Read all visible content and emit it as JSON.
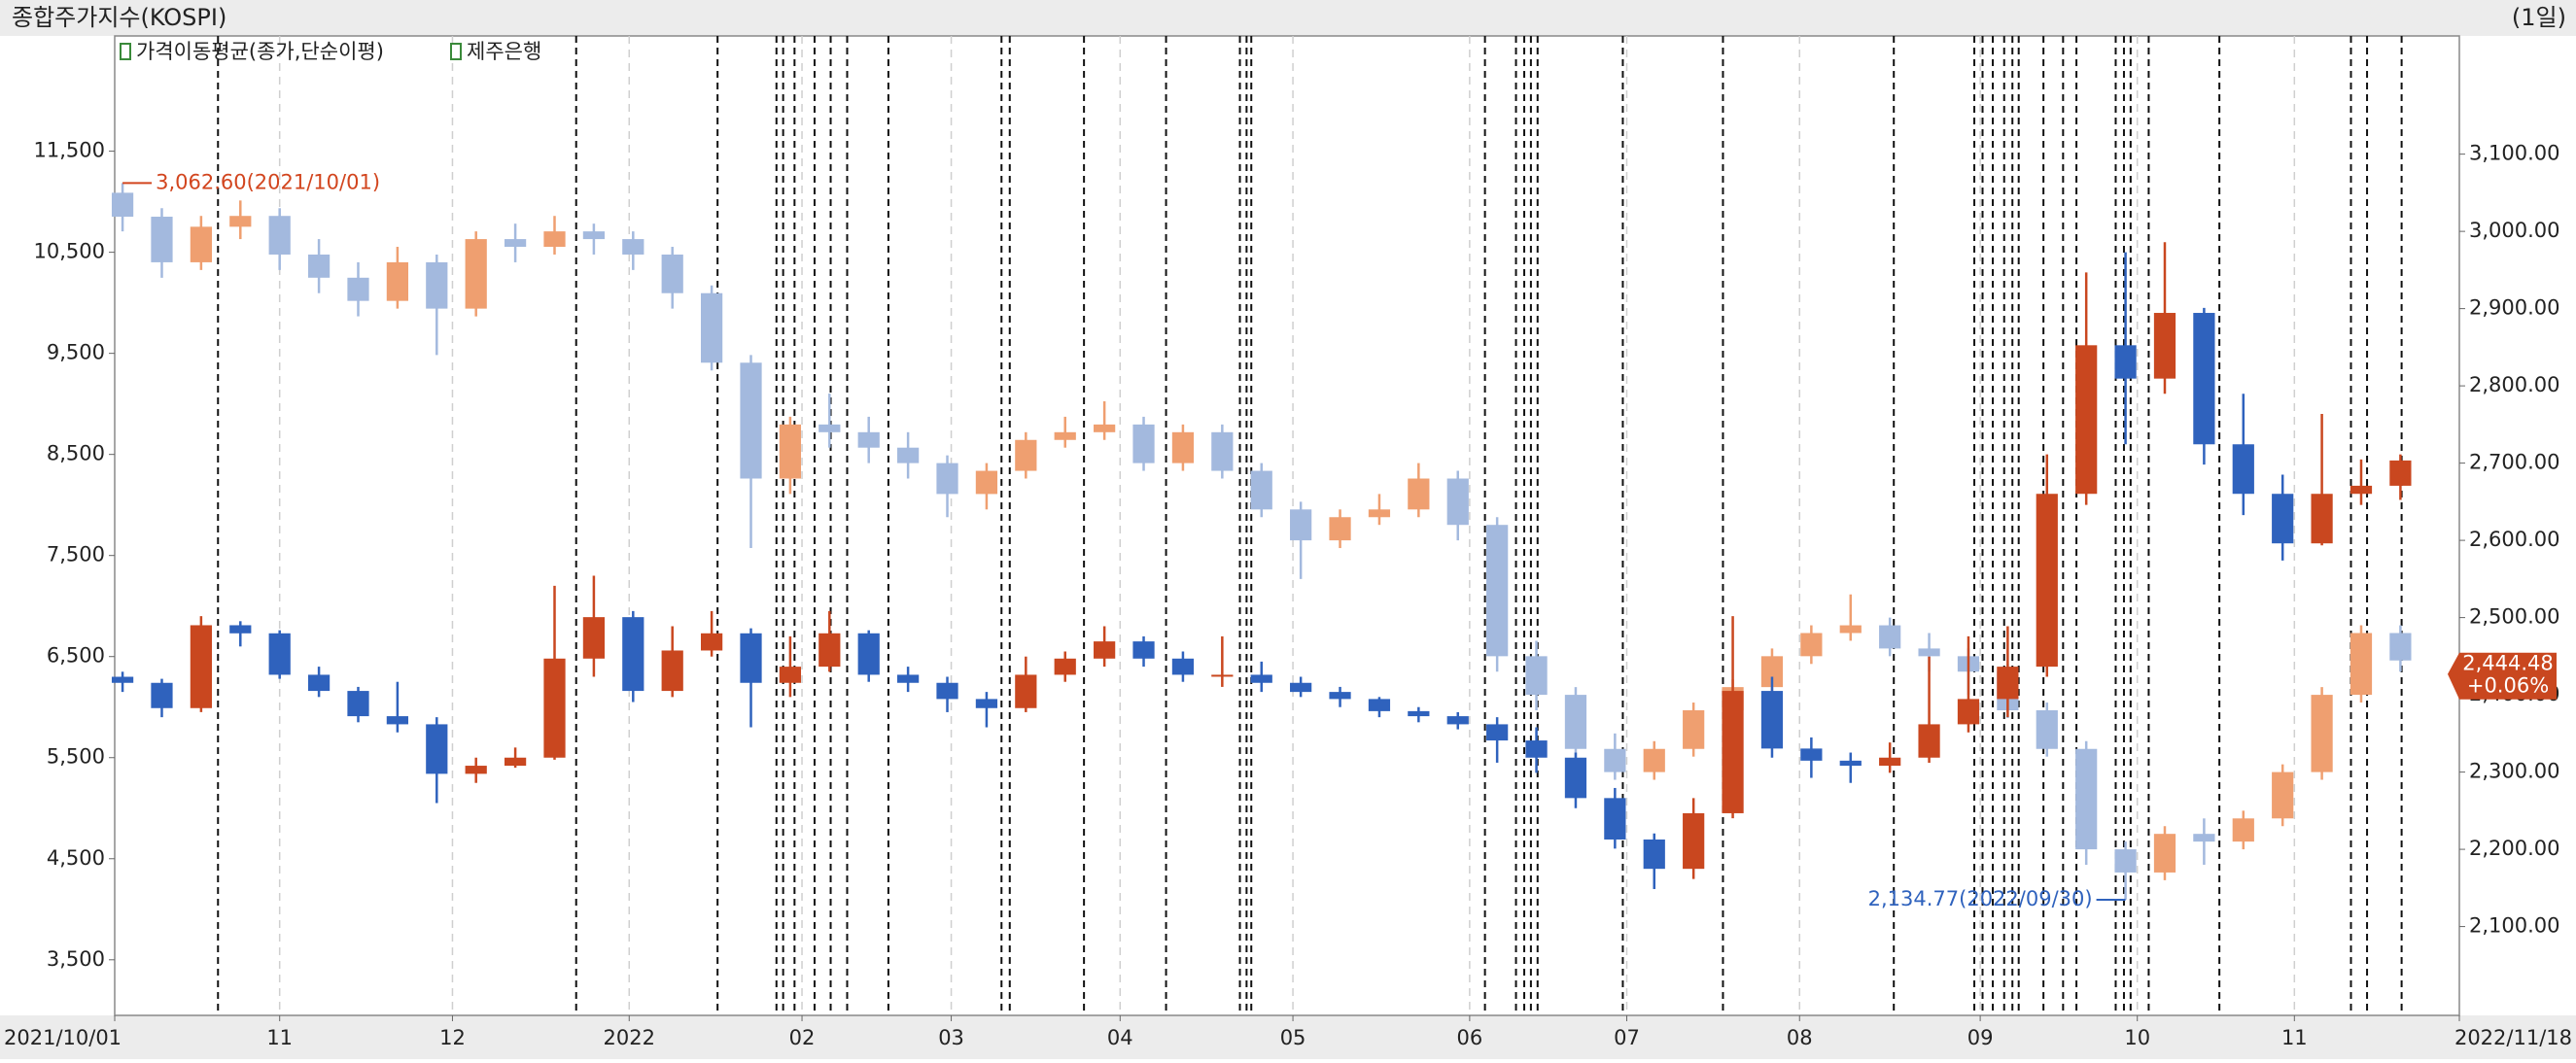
{
  "chart_data": {
    "type": "candlestick",
    "title": "종합주가지수(KOSPI)",
    "period": "(1일)",
    "indicator": "가격이동평균(종가,단순이평)",
    "xlim": [
      -0.2,
      59.5
    ],
    "xticks": [
      {
        "value": -0.2,
        "label": "2021/10/01"
      },
      {
        "value": 4.0,
        "label": "11"
      },
      {
        "value": 8.4,
        "label": "12"
      },
      {
        "value": 12.9,
        "label": "2022"
      },
      {
        "value": 17.3,
        "label": "02"
      },
      {
        "value": 21.1,
        "label": "03"
      },
      {
        "value": 25.4,
        "label": "04"
      },
      {
        "value": 29.8,
        "label": "05"
      },
      {
        "value": 34.3,
        "label": "06"
      },
      {
        "value": 38.3,
        "label": "07"
      },
      {
        "value": 42.7,
        "label": "08"
      },
      {
        "value": 47.3,
        "label": "09"
      },
      {
        "value": 51.3,
        "label": "10"
      },
      {
        "value": 55.3,
        "label": "11"
      },
      {
        "value": 59.5,
        "label": "2022/11/18"
      }
    ],
    "ylim": [
      2950,
      12640
    ],
    "yticks": [
      {
        "value": 3500,
        "label": "3,500"
      },
      {
        "value": 4500,
        "label": "4,500"
      },
      {
        "value": 5500,
        "label": "5,500"
      },
      {
        "value": 6500,
        "label": "6,500"
      },
      {
        "value": 7500,
        "label": "7,500"
      },
      {
        "value": 8500,
        "label": "8,500"
      },
      {
        "value": 9500,
        "label": "9,500"
      },
      {
        "value": 10500,
        "label": "10,500"
      },
      {
        "value": 11500,
        "label": "11,500"
      }
    ],
    "y2lim": [
      1985,
      3253
    ],
    "y2ticks": [
      {
        "value": 2100,
        "label": "2,100.00"
      },
      {
        "value": 2200,
        "label": "2,200.00"
      },
      {
        "value": 2300,
        "label": "2,300.00"
      },
      {
        "value": 2400,
        "label": "2,400.00"
      },
      {
        "value": 2500,
        "label": "2,500.00"
      },
      {
        "value": 2600,
        "label": "2,600.00"
      },
      {
        "value": 2700,
        "label": "2,700.00"
      },
      {
        "value": 2800,
        "label": "2,800.00"
      },
      {
        "value": 2900,
        "label": "2,900.00"
      },
      {
        "value": 3000,
        "label": "3,000.00"
      },
      {
        "value": 3100,
        "label": "3,100.00"
      }
    ],
    "event_lines": [
      2.43,
      11.55,
      15.15,
      16.65,
      16.82,
      17.11,
      17.62,
      18.03,
      18.45,
      19.5,
      22.38,
      22.59,
      24.48,
      26.57,
      28.45,
      28.62,
      28.74,
      34.69,
      35.48,
      35.69,
      35.86,
      36.03,
      38.2,
      40.75,
      45.1,
      47.15,
      47.36,
      47.62,
      47.91,
      48.12,
      48.28,
      48.91,
      49.41,
      49.75,
      50.75,
      50.96,
      51.13,
      51.59,
      53.39,
      56.74,
      57.15,
      58.03
    ],
    "series": [
      {
        "axis": "y2",
        "up_color": "#ef9f70",
        "down_color": "#a3b9de",
        "ohlc": [
          [
            3050,
            3062.6,
            3000,
            3019
          ],
          [
            3019,
            3030,
            2940,
            2960
          ],
          [
            2960,
            3020,
            2950,
            3006
          ],
          [
            3006,
            3040,
            2990,
            3020
          ],
          [
            3020,
            3030,
            2950,
            2970
          ],
          [
            2970,
            2990,
            2920,
            2940
          ],
          [
            2940,
            2960,
            2890,
            2910
          ],
          [
            2910,
            2980,
            2900,
            2960
          ],
          [
            2960,
            2970,
            2840,
            2900
          ],
          [
            2900,
            3000,
            2890,
            2990
          ],
          [
            2990,
            3010,
            2960,
            2980
          ],
          [
            2980,
            3020,
            2970,
            3000
          ],
          [
            3000,
            3010,
            2970,
            2990
          ],
          [
            2990,
            3000,
            2950,
            2970
          ],
          [
            2970,
            2980,
            2900,
            2920
          ],
          [
            2920,
            2930,
            2820,
            2830
          ],
          [
            2830,
            2840,
            2590,
            2680
          ],
          [
            2680,
            2760,
            2660,
            2750
          ],
          [
            2750,
            2790,
            2720,
            2740
          ],
          [
            2740,
            2760,
            2700,
            2720
          ],
          [
            2720,
            2740,
            2680,
            2700
          ],
          [
            2700,
            2710,
            2630,
            2660
          ],
          [
            2660,
            2700,
            2640,
            2690
          ],
          [
            2690,
            2740,
            2680,
            2730
          ],
          [
            2730,
            2760,
            2720,
            2740
          ],
          [
            2740,
            2780,
            2730,
            2750
          ],
          [
            2750,
            2760,
            2690,
            2700
          ],
          [
            2700,
            2750,
            2690,
            2740
          ],
          [
            2740,
            2750,
            2680,
            2690
          ],
          [
            2690,
            2700,
            2630,
            2640
          ],
          [
            2640,
            2650,
            2550,
            2600
          ],
          [
            2600,
            2640,
            2590,
            2630
          ],
          [
            2630,
            2660,
            2620,
            2640
          ],
          [
            2640,
            2700,
            2630,
            2680
          ],
          [
            2680,
            2690,
            2600,
            2620
          ],
          [
            2620,
            2630,
            2430,
            2450
          ],
          [
            2450,
            2470,
            2380,
            2400
          ],
          [
            2400,
            2410,
            2290,
            2330
          ],
          [
            2330,
            2350,
            2290,
            2300
          ],
          [
            2300,
            2340,
            2290,
            2330
          ],
          [
            2330,
            2390,
            2320,
            2380
          ],
          [
            2380,
            2420,
            2370,
            2410
          ],
          [
            2410,
            2460,
            2400,
            2450
          ],
          [
            2450,
            2490,
            2440,
            2480
          ],
          [
            2480,
            2530,
            2470,
            2490
          ],
          [
            2490,
            2500,
            2450,
            2460
          ],
          [
            2460,
            2480,
            2430,
            2450
          ],
          [
            2450,
            2460,
            2400,
            2430
          ],
          [
            2430,
            2440,
            2370,
            2380
          ],
          [
            2380,
            2390,
            2320,
            2330
          ],
          [
            2330,
            2340,
            2180,
            2200
          ],
          [
            2200,
            2210,
            2134.77,
            2170
          ],
          [
            2170,
            2230,
            2160,
            2220
          ],
          [
            2220,
            2240,
            2180,
            2210
          ],
          [
            2210,
            2250,
            2200,
            2240
          ],
          [
            2240,
            2310,
            2230,
            2300
          ],
          [
            2300,
            2410,
            2290,
            2400
          ],
          [
            2400,
            2490,
            2390,
            2480
          ],
          [
            2480,
            2490,
            2430,
            2444.48
          ]
        ]
      },
      {
        "name": "제주은행",
        "axis": "y",
        "up_color": "#c9471f",
        "down_color": "#2f62bd",
        "ohlc": [
          [
            6300,
            6350,
            6150,
            6240
          ],
          [
            6240,
            6280,
            5900,
            5990
          ],
          [
            5990,
            6900,
            5950,
            6810
          ],
          [
            6810,
            6850,
            6600,
            6730
          ],
          [
            6730,
            6760,
            6280,
            6320
          ],
          [
            6320,
            6400,
            6100,
            6160
          ],
          [
            6160,
            6200,
            5850,
            5910
          ],
          [
            5910,
            6250,
            5750,
            5830
          ],
          [
            5830,
            5900,
            5050,
            5340
          ],
          [
            5340,
            5500,
            5250,
            5420
          ],
          [
            5420,
            5600,
            5400,
            5500
          ],
          [
            5500,
            7200,
            5480,
            6480
          ],
          [
            6480,
            7300,
            6300,
            6890
          ],
          [
            6890,
            6950,
            6050,
            6160
          ],
          [
            6160,
            6800,
            6100,
            6560
          ],
          [
            6560,
            6950,
            6500,
            6730
          ],
          [
            6730,
            6780,
            5800,
            6240
          ],
          [
            6240,
            6700,
            6100,
            6400
          ],
          [
            6400,
            6950,
            6350,
            6730
          ],
          [
            6730,
            6760,
            6250,
            6320
          ],
          [
            6320,
            6400,
            6150,
            6240
          ],
          [
            6240,
            6300,
            5950,
            6080
          ],
          [
            6080,
            6150,
            5800,
            5990
          ],
          [
            5990,
            6500,
            5950,
            6320
          ],
          [
            6320,
            6550,
            6250,
            6480
          ],
          [
            6480,
            6800,
            6400,
            6650
          ],
          [
            6650,
            6700,
            6400,
            6480
          ],
          [
            6480,
            6550,
            6250,
            6320
          ],
          [
            6320,
            6700,
            6200,
            6320
          ],
          [
            6320,
            6450,
            6150,
            6240
          ],
          [
            6240,
            6300,
            6100,
            6150
          ],
          [
            6150,
            6200,
            6000,
            6080
          ],
          [
            6080,
            6100,
            5900,
            5960
          ],
          [
            5960,
            6000,
            5850,
            5910
          ],
          [
            5910,
            5950,
            5780,
            5830
          ],
          [
            5830,
            5900,
            5450,
            5670
          ],
          [
            5670,
            5800,
            5350,
            5500
          ],
          [
            5500,
            5550,
            5000,
            5100
          ],
          [
            5100,
            5200,
            4600,
            4690
          ],
          [
            4690,
            4750,
            4200,
            4400
          ],
          [
            4400,
            5100,
            4300,
            4950
          ],
          [
            4950,
            6900,
            4900,
            6160
          ],
          [
            6160,
            6300,
            5500,
            5590
          ],
          [
            5590,
            5700,
            5300,
            5470
          ],
          [
            5470,
            5550,
            5250,
            5420
          ],
          [
            5420,
            5650,
            5350,
            5500
          ],
          [
            5500,
            6500,
            5450,
            5830
          ],
          [
            5830,
            6700,
            5750,
            6080
          ],
          [
            6080,
            6800,
            5900,
            6400
          ],
          [
            6400,
            8500,
            6300,
            8110
          ],
          [
            8110,
            10300,
            8000,
            9580
          ],
          [
            9580,
            10500,
            8600,
            9250
          ],
          [
            9250,
            10600,
            9100,
            9900
          ],
          [
            9900,
            9950,
            8400,
            8600
          ],
          [
            8600,
            9100,
            7900,
            8110
          ],
          [
            8110,
            8300,
            7450,
            7620
          ],
          [
            7620,
            8900,
            7600,
            8110
          ],
          [
            8110,
            8450,
            8000,
            8190
          ],
          [
            8190,
            8500,
            8050,
            8440
          ]
        ]
      }
    ],
    "annotations": [
      {
        "index": 0,
        "value": 3062.6,
        "label": "3,062.60(2021/10/01)",
        "color": "#d2451e",
        "side": "right"
      },
      {
        "index": 51,
        "value": 2134.77,
        "label": "2,134.77(2022/09/30)",
        "color": "#2f62bd",
        "side": "left"
      }
    ],
    "last_price": {
      "value": 2444.48,
      "label": "2,444.48"
    },
    "last_change": "+0.06%"
  }
}
